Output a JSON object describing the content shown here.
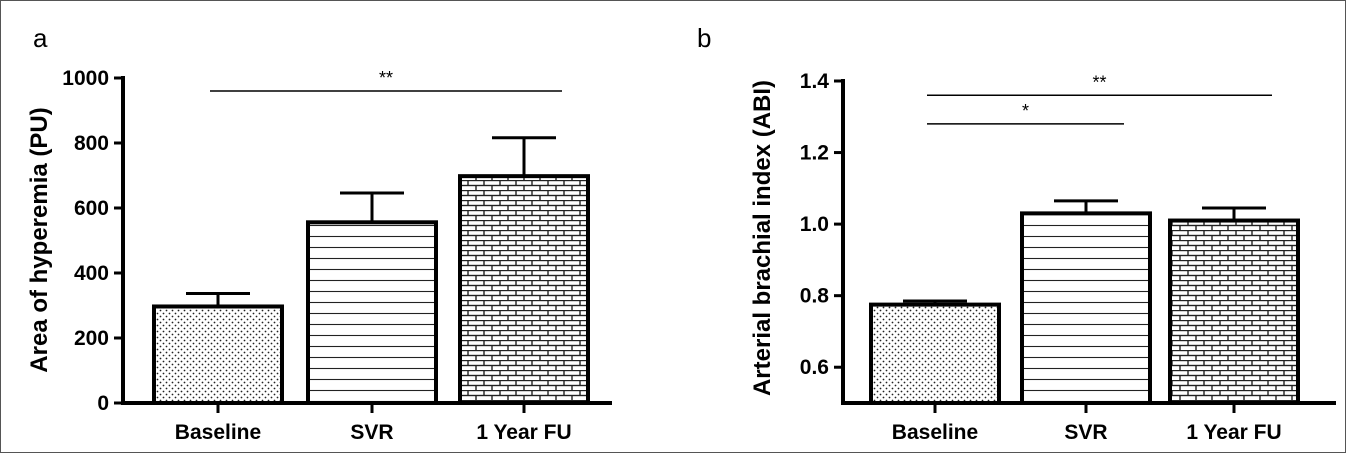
{
  "chart_data": [
    {
      "type": "bar",
      "panel_label": "a",
      "ylabel": "Area of hyperemia  (PU)",
      "categories": [
        "Baseline",
        "SVR",
        "1 Year FU"
      ],
      "values": [
        297,
        556,
        698
      ],
      "error_plus": [
        40,
        90,
        118
      ],
      "ylim": [
        0,
        1000
      ],
      "yticks": [
        0,
        200,
        400,
        600,
        800,
        1000
      ],
      "ytick_labels": [
        "0",
        "200",
        "400",
        "600",
        "800",
        "1000"
      ],
      "patterns": [
        "dots",
        "hlines",
        "bricks"
      ],
      "significance": [
        {
          "from": 0,
          "to": 2,
          "label": "**",
          "y": 960
        }
      ]
    },
    {
      "type": "bar",
      "panel_label": "b",
      "ylabel": "Arterial brachial index (ABI)",
      "categories": [
        "Baseline",
        "SVR",
        "1 Year FU"
      ],
      "values": [
        0.775,
        1.03,
        1.01
      ],
      "error_plus": [
        0.01,
        0.035,
        0.035
      ],
      "ylim": [
        0.5,
        1.4
      ],
      "yticks": [
        0.6,
        0.8,
        1.0,
        1.2,
        1.4
      ],
      "ytick_labels": [
        "0.6",
        "0.8",
        "1.0",
        "1.2",
        "1.4"
      ],
      "patterns": [
        "dots",
        "hlines",
        "bricks"
      ],
      "significance": [
        {
          "from": 0,
          "to": 2,
          "label": "**",
          "y": 1.36
        },
        {
          "from": 0,
          "to": 1,
          "label": "*",
          "y": 1.28
        }
      ]
    }
  ]
}
